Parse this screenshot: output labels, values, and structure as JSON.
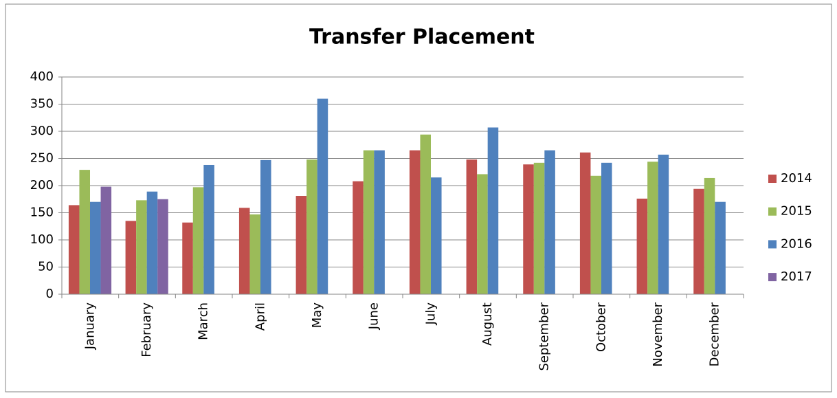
{
  "chart_data": {
    "type": "bar",
    "title": "Transfer Placement",
    "categories": [
      "January",
      "February",
      "March",
      "April",
      "May",
      "June",
      "July",
      "August",
      "September",
      "October",
      "November",
      "December"
    ],
    "series": [
      {
        "name": "2014",
        "color": "#c0504d",
        "values": [
          164,
          135,
          132,
          159,
          181,
          208,
          265,
          248,
          239,
          261,
          176,
          194
        ]
      },
      {
        "name": "2015",
        "color": "#9bbb59",
        "values": [
          229,
          173,
          197,
          147,
          248,
          265,
          294,
          221,
          242,
          218,
          244,
          214
        ]
      },
      {
        "name": "2016",
        "color": "#4f81bd",
        "values": [
          170,
          189,
          238,
          247,
          360,
          265,
          215,
          307,
          265,
          242,
          257,
          170
        ]
      },
      {
        "name": "2017",
        "color": "#8064a2",
        "values": [
          198,
          175,
          null,
          null,
          null,
          null,
          null,
          null,
          null,
          null,
          null,
          null
        ]
      }
    ],
    "ylim": [
      0,
      400
    ],
    "yticks": [
      0,
      50,
      100,
      150,
      200,
      250,
      300,
      350,
      400
    ],
    "grid": true,
    "legend": "right"
  }
}
